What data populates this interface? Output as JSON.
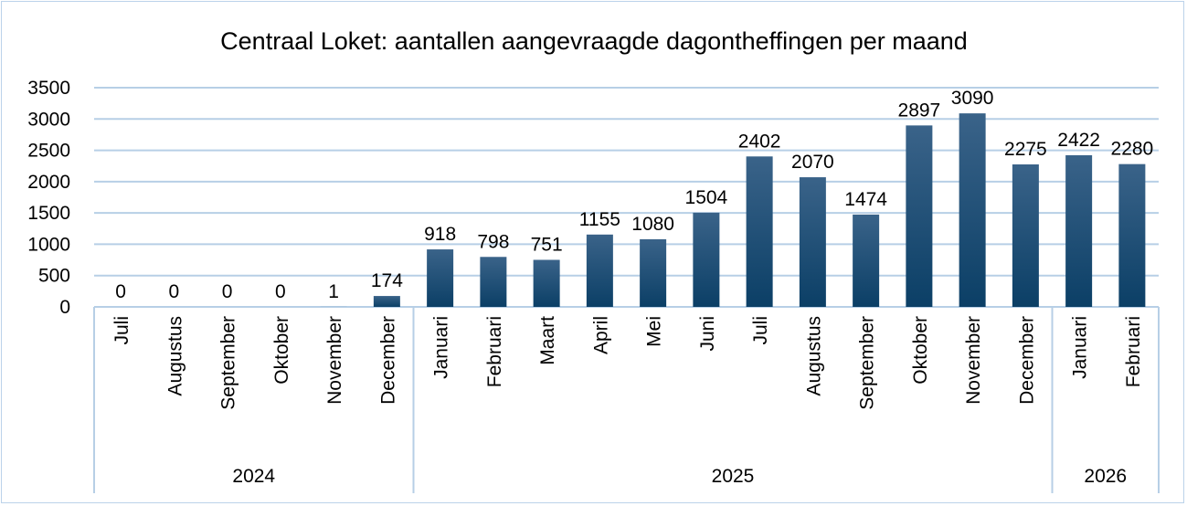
{
  "chart_data": {
    "type": "bar",
    "title": "Centraal Loket: aantallen aangevraagde dagontheffingen per maand",
    "xlabel": "",
    "ylabel": "",
    "ylim": [
      0,
      3500
    ],
    "yticks": [
      "0",
      "500",
      "1000",
      "1500",
      "2000",
      "2500",
      "3000",
      "3500"
    ],
    "grid": true,
    "legend": "none",
    "bar_color_top": "#3a6389",
    "bar_color_bottom": "#0b3f66",
    "categories": [
      "Juli",
      "Augustus",
      "September",
      "Oktober",
      "November",
      "December",
      "Januari",
      "Februari",
      "Maart",
      "April",
      "Mei",
      "Juni",
      "Juli",
      "Augustus",
      "September",
      "Oktober",
      "November",
      "December",
      "Januari",
      "Februari"
    ],
    "years": [
      {
        "label": "2024",
        "count": 6
      },
      {
        "label": "2025",
        "count": 12
      },
      {
        "label": "2026",
        "count": 2
      }
    ],
    "values": [
      0,
      0,
      0,
      0,
      1,
      174,
      918,
      798,
      751,
      1155,
      1080,
      1504,
      2402,
      2070,
      1474,
      2897,
      3090,
      2275,
      2422,
      2280
    ]
  }
}
